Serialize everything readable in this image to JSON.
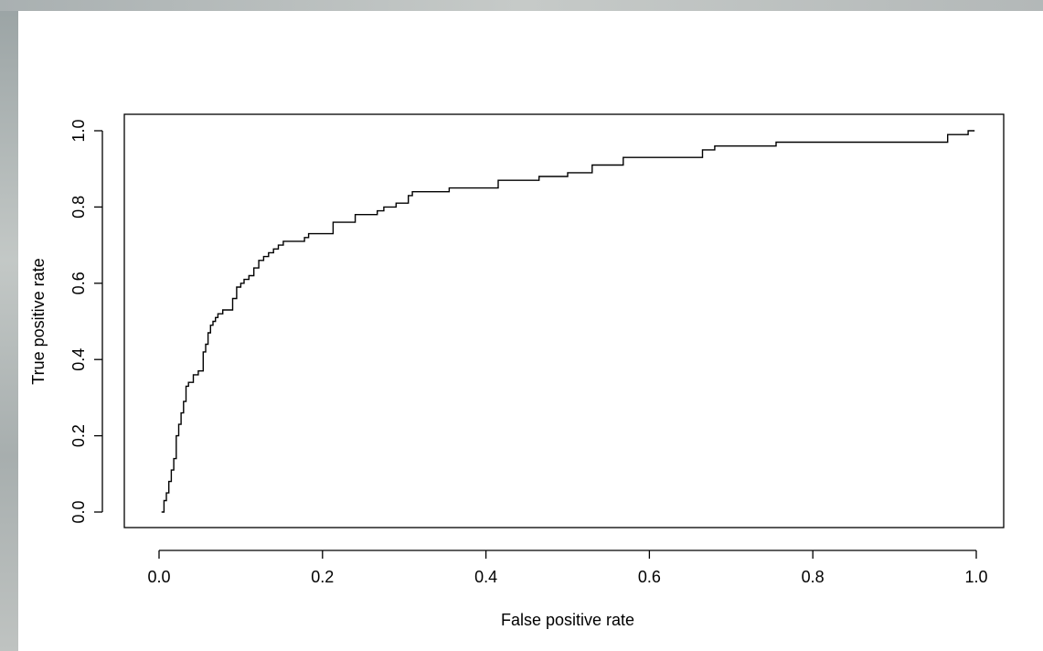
{
  "chart_data": {
    "type": "line",
    "title": "",
    "xlabel": "False positive rate",
    "ylabel": "True positive rate",
    "xlim": [
      0,
      1
    ],
    "ylim": [
      0,
      1
    ],
    "xticks": [
      "0.0",
      "0.2",
      "0.4",
      "0.6",
      "0.8",
      "1.0"
    ],
    "yticks": [
      "0.0",
      "0.2",
      "0.4",
      "0.6",
      "0.8",
      "1.0"
    ],
    "grid": false,
    "legend": "none",
    "line_color": "#000000",
    "series": [
      {
        "x": [
          0.003,
          0.006,
          0.006,
          0.009,
          0.009,
          0.012,
          0.012,
          0.015,
          0.015,
          0.018,
          0.018,
          0.021,
          0.021,
          0.024,
          0.024,
          0.027,
          0.027,
          0.03,
          0.03,
          0.033,
          0.033,
          0.036,
          0.036,
          0.042,
          0.042,
          0.048,
          0.048,
          0.054,
          0.054,
          0.057,
          0.057,
          0.06,
          0.06,
          0.063,
          0.063,
          0.066,
          0.066,
          0.069,
          0.069,
          0.072,
          0.072,
          0.078,
          0.078,
          0.09,
          0.09,
          0.095,
          0.095,
          0.1,
          0.1,
          0.104,
          0.104,
          0.11,
          0.11,
          0.116,
          0.116,
          0.122,
          0.122,
          0.128,
          0.128,
          0.134,
          0.134,
          0.14,
          0.14,
          0.146,
          0.146,
          0.152,
          0.152,
          0.178,
          0.178,
          0.183,
          0.183,
          0.213,
          0.213,
          0.24,
          0.24,
          0.267,
          0.267,
          0.275,
          0.275,
          0.29,
          0.29,
          0.305,
          0.305,
          0.31,
          0.31,
          0.355,
          0.355,
          0.415,
          0.415,
          0.465,
          0.465,
          0.5,
          0.5,
          0.53,
          0.53,
          0.568,
          0.568,
          0.665,
          0.665,
          0.68,
          0.68,
          0.755,
          0.755,
          0.965,
          0.965,
          0.99,
          0.99,
          0.998
        ],
        "y": [
          0.0,
          0.0,
          0.03,
          0.03,
          0.05,
          0.05,
          0.08,
          0.08,
          0.11,
          0.11,
          0.14,
          0.14,
          0.2,
          0.2,
          0.23,
          0.23,
          0.26,
          0.26,
          0.29,
          0.29,
          0.33,
          0.33,
          0.34,
          0.34,
          0.36,
          0.36,
          0.37,
          0.37,
          0.42,
          0.42,
          0.44,
          0.44,
          0.47,
          0.47,
          0.49,
          0.49,
          0.5,
          0.5,
          0.51,
          0.51,
          0.52,
          0.52,
          0.53,
          0.53,
          0.56,
          0.56,
          0.59,
          0.59,
          0.6,
          0.6,
          0.61,
          0.61,
          0.62,
          0.62,
          0.64,
          0.64,
          0.66,
          0.66,
          0.67,
          0.67,
          0.68,
          0.68,
          0.69,
          0.69,
          0.7,
          0.7,
          0.71,
          0.71,
          0.72,
          0.72,
          0.73,
          0.73,
          0.76,
          0.76,
          0.78,
          0.78,
          0.79,
          0.79,
          0.8,
          0.8,
          0.81,
          0.81,
          0.83,
          0.83,
          0.84,
          0.84,
          0.85,
          0.85,
          0.87,
          0.87,
          0.88,
          0.88,
          0.89,
          0.89,
          0.91,
          0.91,
          0.93,
          0.93,
          0.95,
          0.95,
          0.96,
          0.96,
          0.97,
          0.97,
          0.99,
          0.99,
          1.0,
          1.0
        ]
      }
    ]
  }
}
